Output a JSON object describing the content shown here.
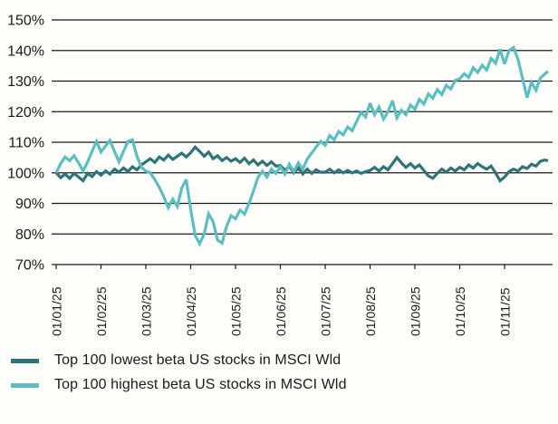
{
  "chart_data": {
    "type": "line",
    "title": "",
    "grid": "horizontal",
    "legend_position": "bottom-left",
    "text_color": "#1a1a1a",
    "grid_color": "#1b1b1b",
    "background_color": "#fdfdf9",
    "y_axis": {
      "unit": "%",
      "min": 70,
      "max": 150,
      "step": 10,
      "tick_labels": [
        "70%",
        "80%",
        "90%",
        "100%",
        "110%",
        "120%",
        "130%",
        "140%",
        "150%"
      ]
    },
    "x_axis": {
      "unit": "date (dd/mm/yy)",
      "tick_labels": [
        "01/01/25",
        "01/02/25",
        "01/03/25",
        "01/04/25",
        "01/05/25",
        "01/06/25",
        "01/07/25",
        "01/08/25",
        "01/09/25",
        "01/10/25",
        "01/11/25"
      ],
      "months_step": 0.1,
      "end_months": 10.97
    },
    "series": [
      {
        "name": "Top 100 lowest beta US stocks in MSCI Wld",
        "color": "#2e7478",
        "values": [
          100,
          98.4,
          99.6,
          98.2,
          99.8,
          98.6,
          97.4,
          99.8,
          98.8,
          100.4,
          99.2,
          100.6,
          99.6,
          101.2,
          100.2,
          101.6,
          100.4,
          102,
          101,
          102.6,
          103.6,
          104.6,
          103.4,
          105.2,
          104.2,
          105.8,
          104.4,
          105.4,
          106.4,
          105.2,
          106.6,
          108.4,
          107,
          105.4,
          106.8,
          104.6,
          105.6,
          104,
          105,
          103.8,
          104.6,
          103.4,
          104.8,
          103,
          104.2,
          102.6,
          103.8,
          102.4,
          103.6,
          102.2,
          102.4,
          100.8,
          102.2,
          100,
          101.6,
          99.6,
          101.2,
          99.8,
          101,
          100.2,
          100.2,
          101.2,
          100,
          101,
          100,
          100.8,
          100,
          100.6,
          99.8,
          100.4,
          100.8,
          101.8,
          100.6,
          102,
          101,
          103,
          105,
          103.2,
          101.8,
          103,
          101.6,
          102.6,
          100.8,
          99,
          98.2,
          99.8,
          101.2,
          100.2,
          101.6,
          100.6,
          101.8,
          101,
          102.6,
          101.6,
          103,
          102,
          101.2,
          102.2,
          100,
          97.4,
          98.6,
          100.4,
          101.2,
          100.6,
          102,
          101.4,
          102.8,
          102.2,
          103.8,
          104.2,
          104
        ]
      },
      {
        "name": "Top 100 highest beta US stocks in MSCI Wld",
        "color": "#5bbec0",
        "values": [
          100,
          103,
          105.2,
          104,
          105.6,
          103.2,
          100.6,
          103.5,
          107,
          110.3,
          106.8,
          108.8,
          110.6,
          107,
          103.6,
          107,
          110.2,
          110.8,
          105.5,
          101.8,
          100.6,
          100,
          97.8,
          95.2,
          92.2,
          88.6,
          91.4,
          89,
          95,
          97.8,
          88,
          79.5,
          76.8,
          80,
          86.6,
          84,
          78,
          77,
          82.5,
          86,
          85,
          87.8,
          86.5,
          90,
          94,
          98.5,
          100.5,
          98.6,
          101.2,
          99.8,
          102,
          99.6,
          102.8,
          100.4,
          103.2,
          101.2,
          104.5,
          106.5,
          108.5,
          110.3,
          109,
          112.2,
          110.8,
          113.5,
          112.4,
          115,
          113.8,
          116.8,
          119.8,
          118.2,
          122.8,
          119,
          121.5,
          117.6,
          120,
          123.6,
          118,
          120.5,
          119,
          122.2,
          120.8,
          124,
          122.5,
          125.8,
          124.4,
          127.2,
          125.6,
          128.6,
          127.4,
          130.2,
          130.8,
          132.4,
          131.2,
          134.4,
          132.8,
          135.2,
          133.6,
          137.4,
          135.8,
          140.4,
          135.6,
          140,
          141,
          137,
          131,
          124.6,
          129.6,
          127,
          131,
          132.4,
          133.2
        ]
      }
    ]
  }
}
